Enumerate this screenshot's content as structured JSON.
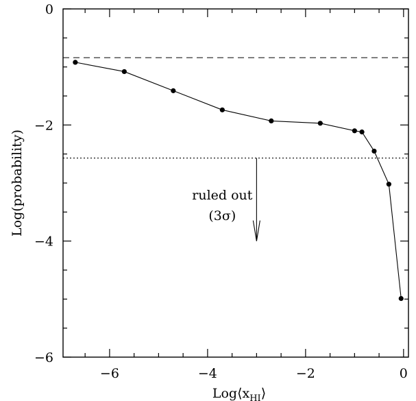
{
  "chart_data": {
    "type": "line",
    "xlabel": "Log⟨x_HI⟩",
    "xlabel_main": "Log⟨x",
    "xlabel_sub": "HI",
    "xlabel_close": "⟩",
    "ylabel": "Log(probability)",
    "xlim": [
      -6.95,
      0.1
    ],
    "ylim": [
      -6,
      0
    ],
    "x_ticks": [
      -6,
      -4,
      -2,
      0
    ],
    "x_tick_labels": [
      "−6",
      "−4",
      "−2",
      "0"
    ],
    "x_minor_step": 0.5,
    "y_ticks": [
      0,
      -2,
      -4,
      -6
    ],
    "y_tick_labels": [
      "0",
      "−2",
      "−4",
      "−6"
    ],
    "y_minor_step": 0.5,
    "grid": false,
    "series": [
      {
        "x": [
          -6.7,
          -5.7,
          -4.7,
          -3.7,
          -2.7,
          -1.7,
          -1.0,
          -0.85,
          -0.6,
          -0.3,
          -0.05
        ],
        "y": [
          -0.92,
          -1.08,
          -1.41,
          -1.74,
          -1.93,
          -1.97,
          -2.1,
          -2.12,
          -2.45,
          -3.02,
          -4.99
        ],
        "style": "solid",
        "markers": "filled-circle",
        "color": "#000000"
      }
    ],
    "reference_lines": [
      {
        "y": -0.84,
        "style": "dashed"
      },
      {
        "y": -2.57,
        "style": "dotted"
      }
    ],
    "arrow": {
      "x": -3.0,
      "y_from": -2.57,
      "y_to": -4.0
    },
    "annotation": {
      "line1": "ruled out",
      "line2": "(3σ)",
      "x": -3.7,
      "y": -3.4
    }
  }
}
